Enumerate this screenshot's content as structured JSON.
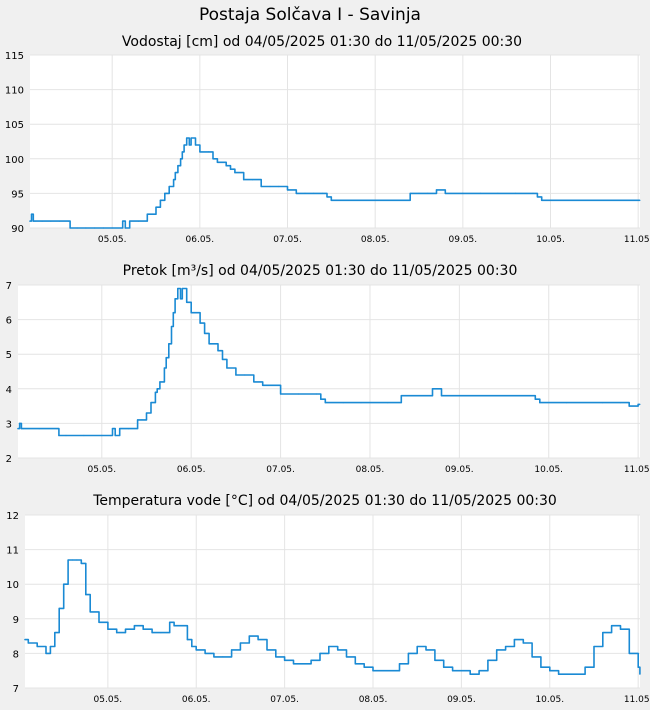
{
  "title": "Postaja Solčava I - Savinja",
  "colors": {
    "background": "#f0f0f0",
    "plot_background": "#ffffff",
    "grid": "#e4e4e4",
    "line": "#1a8ad4"
  },
  "chart_data": [
    {
      "type": "line",
      "title": "Vodostaj [cm] od 04/05/2025 01:30 do 11/05/2025 00:30",
      "xlabel": "",
      "ylabel": "",
      "x_ticks": [
        "05.05.",
        "06.05.",
        "07.05.",
        "08.05.",
        "09.05.",
        "10.05.",
        "11.05."
      ],
      "x_range_days": [
        4.0625,
        11.0208
      ],
      "ylim": [
        90,
        115
      ],
      "y_ticks": [
        90,
        95,
        100,
        105,
        110,
        115
      ],
      "grid": true,
      "series": [
        {
          "x": [
            4.06,
            4.08,
            4.1,
            4.12,
            4.2,
            4.3,
            4.4,
            4.5,
            4.52,
            4.6,
            4.7,
            4.8,
            4.9,
            5.0,
            5.1,
            5.12,
            5.15,
            5.2,
            5.3,
            5.4,
            5.45,
            5.5,
            5.55,
            5.6,
            5.62,
            5.65,
            5.7,
            5.72,
            5.75,
            5.78,
            5.8,
            5.82,
            5.85,
            5.88,
            5.9,
            5.95,
            6.0,
            6.1,
            6.15,
            6.2,
            6.3,
            6.35,
            6.4,
            6.5,
            6.6,
            6.7,
            6.8,
            6.9,
            7.0,
            7.1,
            7.2,
            7.3,
            7.4,
            7.45,
            7.5,
            7.6,
            7.7,
            7.8,
            7.9,
            8.0,
            8.2,
            8.35,
            8.4,
            8.5,
            8.6,
            8.7,
            8.8,
            9.0,
            9.2,
            9.4,
            9.6,
            9.8,
            9.85,
            9.9,
            10.0,
            10.2,
            10.4,
            10.6,
            10.8,
            10.9,
            11.0,
            11.02
          ],
          "values": [
            91,
            92,
            91,
            91,
            91,
            91,
            91,
            91,
            90,
            90,
            90,
            90,
            90,
            90,
            90,
            91,
            90,
            91,
            91,
            92,
            92,
            93,
            94,
            95,
            95,
            96,
            97,
            98,
            99,
            100,
            101,
            102,
            103,
            102,
            103,
            102,
            101,
            101,
            100,
            99.5,
            99,
            98.5,
            98,
            97,
            97,
            96,
            96,
            96,
            95.5,
            95,
            95,
            95,
            95,
            94.5,
            94,
            94,
            94,
            94,
            94,
            94,
            94,
            94,
            95,
            95,
            95,
            95.5,
            95,
            95,
            95,
            95,
            95,
            95,
            94.5,
            94,
            94,
            94,
            94,
            94,
            94,
            94,
            94,
            94
          ]
        }
      ]
    },
    {
      "type": "line",
      "title": "Pretok [m³/s] od 04/05/2025 01:30 do 11/05/2025 00:30",
      "xlabel": "",
      "ylabel": "",
      "x_ticks": [
        "05.05.",
        "06.05.",
        "07.05.",
        "08.05.",
        "09.05.",
        "10.05.",
        "11.05."
      ],
      "x_range_days": [
        4.0625,
        11.0208
      ],
      "ylim": [
        2,
        7
      ],
      "y_ticks": [
        2,
        3,
        4,
        5,
        6,
        7
      ],
      "grid": true,
      "series": [
        {
          "x": [
            4.06,
            4.08,
            4.1,
            4.12,
            4.3,
            4.5,
            4.52,
            4.6,
            4.8,
            5.0,
            5.1,
            5.12,
            5.15,
            5.2,
            5.3,
            5.4,
            5.45,
            5.5,
            5.55,
            5.6,
            5.62,
            5.65,
            5.7,
            5.72,
            5.75,
            5.78,
            5.8,
            5.82,
            5.85,
            5.88,
            5.9,
            5.95,
            6.0,
            6.1,
            6.15,
            6.2,
            6.3,
            6.35,
            6.4,
            6.5,
            6.6,
            6.7,
            6.8,
            6.9,
            7.0,
            7.2,
            7.4,
            7.45,
            7.5,
            7.7,
            7.9,
            8.2,
            8.35,
            8.4,
            8.6,
            8.7,
            8.8,
            9.0,
            9.5,
            9.8,
            9.85,
            9.9,
            10.2,
            10.6,
            10.8,
            10.9,
            11.0,
            11.02
          ],
          "values": [
            2.85,
            3.0,
            2.85,
            2.85,
            2.85,
            2.85,
            2.65,
            2.65,
            2.65,
            2.65,
            2.65,
            2.85,
            2.65,
            2.85,
            2.85,
            3.1,
            3.1,
            3.3,
            3.6,
            3.9,
            4.0,
            4.2,
            4.6,
            4.9,
            5.3,
            5.8,
            6.2,
            6.6,
            6.9,
            6.6,
            6.9,
            6.5,
            6.2,
            5.9,
            5.6,
            5.3,
            5.1,
            4.85,
            4.6,
            4.4,
            4.4,
            4.2,
            4.1,
            4.1,
            3.85,
            3.85,
            3.85,
            3.7,
            3.6,
            3.6,
            3.6,
            3.6,
            3.8,
            3.8,
            3.8,
            4.0,
            3.8,
            3.8,
            3.8,
            3.8,
            3.7,
            3.6,
            3.6,
            3.6,
            3.6,
            3.5,
            3.55,
            3.55
          ]
        }
      ]
    },
    {
      "type": "line",
      "title": "Temperatura vode [°C] od 04/05/2025 01:30 do 11/05/2025 00:30",
      "xlabel": "",
      "ylabel": "",
      "x_ticks": [
        "05.05.",
        "06.05.",
        "07.05.",
        "08.05.",
        "09.05.",
        "10.05.",
        "11.05."
      ],
      "x_range_days": [
        4.0625,
        11.0208
      ],
      "ylim": [
        7,
        12
      ],
      "y_ticks": [
        7,
        8,
        9,
        10,
        11,
        12
      ],
      "grid": true,
      "series": [
        {
          "x": [
            4.06,
            4.1,
            4.2,
            4.3,
            4.35,
            4.4,
            4.45,
            4.5,
            4.55,
            4.6,
            4.65,
            4.7,
            4.75,
            4.8,
            4.9,
            5.0,
            5.1,
            5.2,
            5.3,
            5.4,
            5.5,
            5.6,
            5.7,
            5.75,
            5.8,
            5.9,
            5.95,
            6.0,
            6.1,
            6.2,
            6.3,
            6.4,
            6.5,
            6.6,
            6.7,
            6.8,
            6.9,
            7.0,
            7.1,
            7.2,
            7.3,
            7.4,
            7.5,
            7.6,
            7.7,
            7.8,
            7.9,
            8.0,
            8.1,
            8.2,
            8.3,
            8.4,
            8.5,
            8.6,
            8.7,
            8.8,
            8.9,
            9.0,
            9.1,
            9.2,
            9.3,
            9.4,
            9.5,
            9.6,
            9.7,
            9.8,
            9.9,
            10.0,
            10.1,
            10.2,
            10.3,
            10.4,
            10.5,
            10.6,
            10.7,
            10.8,
            10.9,
            11.0,
            11.02
          ],
          "values": [
            8.4,
            8.3,
            8.2,
            8.0,
            8.2,
            8.6,
            9.3,
            10.0,
            10.7,
            10.7,
            10.7,
            10.6,
            9.7,
            9.2,
            8.9,
            8.7,
            8.6,
            8.7,
            8.8,
            8.7,
            8.6,
            8.6,
            8.9,
            8.8,
            8.8,
            8.4,
            8.2,
            8.1,
            8.0,
            7.9,
            7.9,
            8.1,
            8.3,
            8.5,
            8.4,
            8.1,
            7.9,
            7.8,
            7.7,
            7.7,
            7.8,
            8.0,
            8.2,
            8.1,
            7.9,
            7.7,
            7.6,
            7.5,
            7.5,
            7.5,
            7.7,
            8.0,
            8.2,
            8.1,
            7.8,
            7.6,
            7.5,
            7.5,
            7.4,
            7.5,
            7.8,
            8.1,
            8.2,
            8.4,
            8.3,
            7.9,
            7.6,
            7.5,
            7.4,
            7.4,
            7.4,
            7.6,
            8.2,
            8.6,
            8.8,
            8.7,
            8.0,
            7.6,
            7.4
          ]
        }
      ]
    }
  ]
}
